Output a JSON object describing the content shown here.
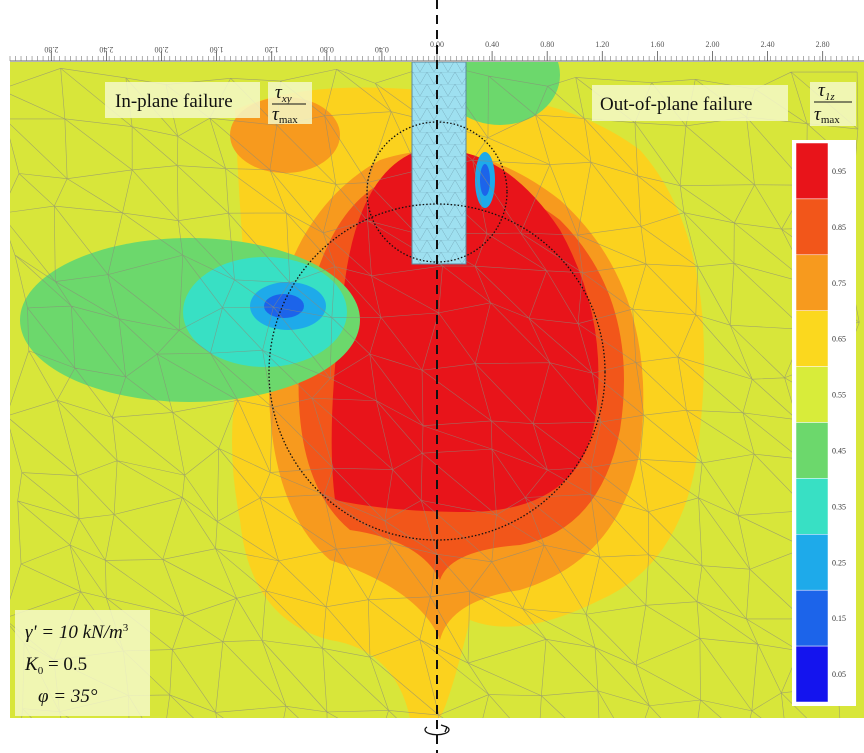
{
  "chart_data": {
    "type": "contour",
    "xlim": [
      -3.1,
      3.1
    ],
    "xticks": [
      {
        "value": -2.8,
        "label": "2.80"
      },
      {
        "value": -2.4,
        "label": "2.40"
      },
      {
        "value": -2.0,
        "label": "2.00"
      },
      {
        "value": -1.6,
        "label": "1.60"
      },
      {
        "value": -1.2,
        "label": "1.20"
      },
      {
        "value": -0.8,
        "label": "0.80"
      },
      {
        "value": -0.4,
        "label": "0.40"
      },
      {
        "value": 0,
        "label": "0.00"
      },
      {
        "value": 0.4,
        "label": "0.40"
      },
      {
        "value": 0.8,
        "label": "0.80"
      },
      {
        "value": 1.2,
        "label": "1.20"
      },
      {
        "value": 1.6,
        "label": "1.60"
      },
      {
        "value": 2.0,
        "label": "2.00"
      },
      {
        "value": 2.4,
        "label": "2.40"
      },
      {
        "value": 2.8,
        "label": "2.80"
      }
    ],
    "colorbar": {
      "clim": [
        0,
        1
      ],
      "levels": [
        {
          "value": 0.95,
          "label": "0.95"
        },
        {
          "value": 0.85,
          "label": "0.85"
        },
        {
          "value": 0.75,
          "label": "0.75"
        },
        {
          "value": 0.65,
          "label": "0.65"
        },
        {
          "value": 0.55,
          "label": "0.55"
        },
        {
          "value": 0.45,
          "label": "0.45"
        },
        {
          "value": 0.35,
          "label": "0.35"
        },
        {
          "value": 0.25,
          "label": "0.25"
        },
        {
          "value": 0.15,
          "label": "0.15"
        },
        {
          "value": 0.05,
          "label": "0.05"
        }
      ],
      "colors": [
        "#e8141a",
        "#f2561a",
        "#f79a1e",
        "#fbd81e",
        "#d8ec3a",
        "#6cd86c",
        "#38e0c4",
        "#1eaaea",
        "#1c64ea",
        "#1414ee"
      ]
    },
    "annotations": {
      "left_title": "In-plane failure",
      "left_ratio": {
        "num": "τ",
        "num_sub": "xy",
        "den": "τ",
        "den_sub": "max"
      },
      "right_title": "Out-of-plane failure",
      "right_ratio": {
        "num": "τ",
        "num_sub": "1z",
        "den": "τ",
        "den_sub": "max"
      },
      "params": {
        "gamma": "γ' = 10 kN/m",
        "gamma_sup": "3",
        "k0": "K",
        "k0_sub": "0",
        "k0_rest": " = 0.5",
        "phi": "φ = 35°"
      }
    }
  }
}
